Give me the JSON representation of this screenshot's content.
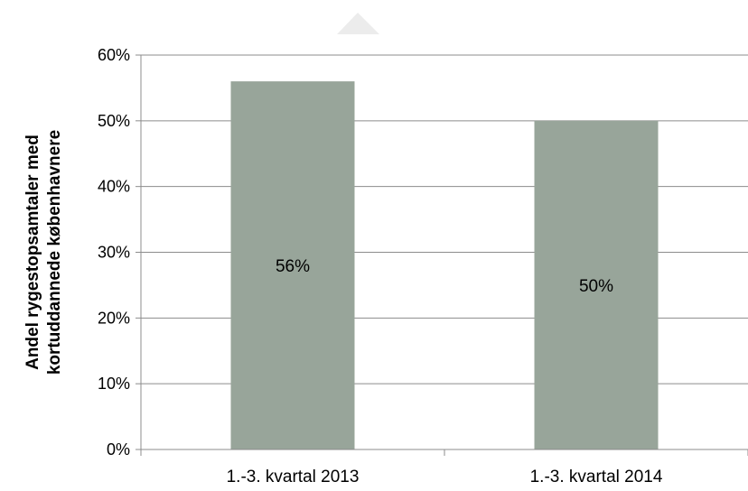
{
  "chart_data": {
    "type": "bar",
    "categories": [
      "1.-3. kvartal 2013",
      "1.-3. kvartal 2014"
    ],
    "values": [
      0.56,
      0.5
    ],
    "data_labels": [
      "56%",
      "50%"
    ],
    "ylim": [
      0,
      0.6
    ],
    "yticks": [
      0,
      0.1,
      0.2,
      0.3,
      0.4,
      0.5,
      0.6
    ],
    "ytick_labels": [
      "0%",
      "10%",
      "20%",
      "30%",
      "40%",
      "50%",
      "60%"
    ],
    "ylabel_lines": [
      "Andel rygestopsamtaler med",
      "kortuddannede københavnere"
    ],
    "bar_color": "#98a59a",
    "grid": true
  }
}
